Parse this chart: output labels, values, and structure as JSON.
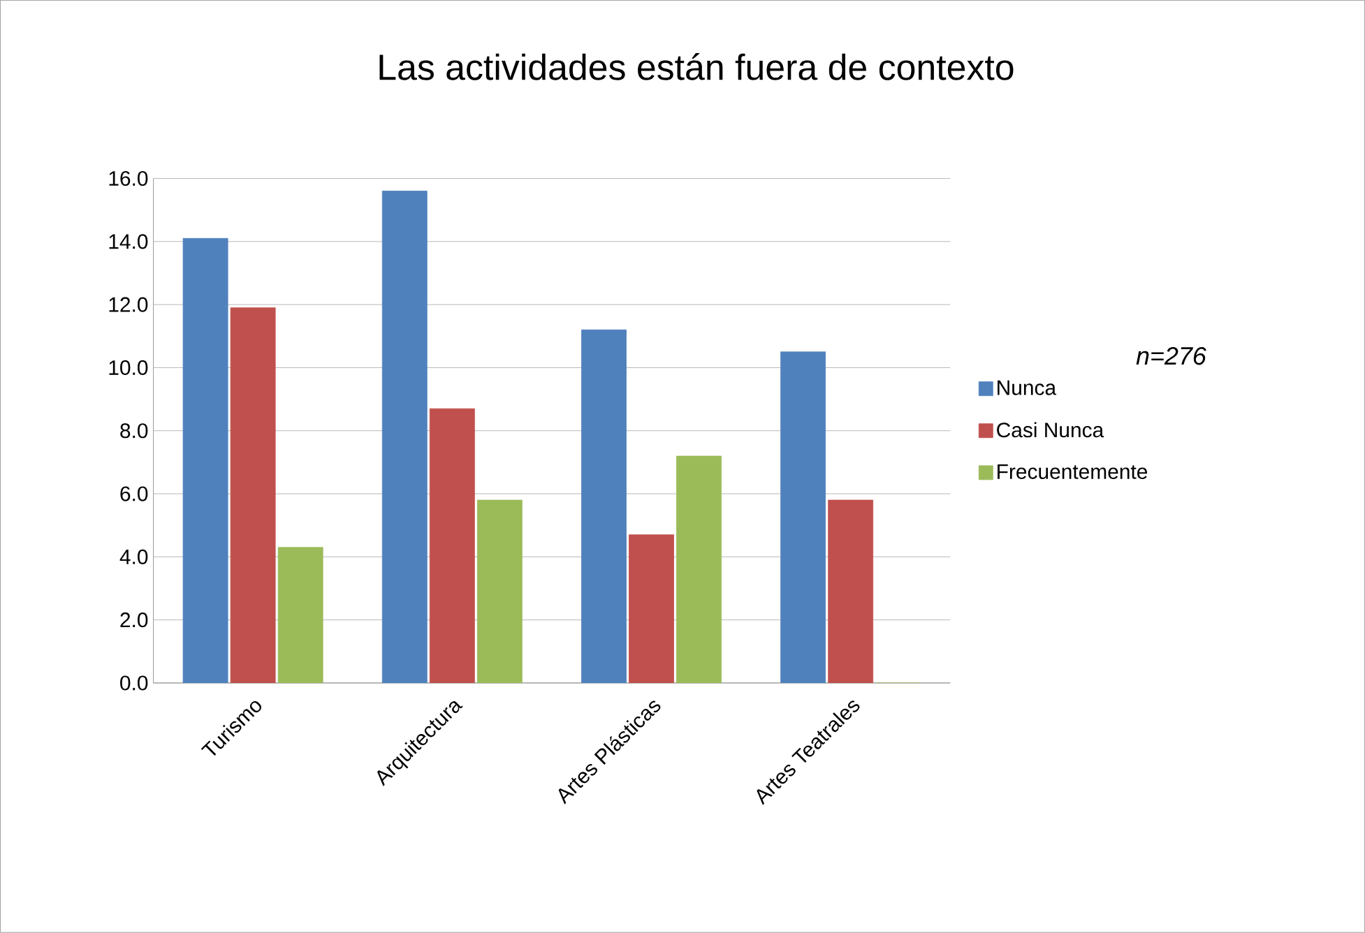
{
  "chart_data": {
    "type": "bar",
    "title": "Las actividades están fuera de contexto",
    "categories": [
      "Turismo",
      "Arquitectura",
      "Artes Plásticas",
      "Artes Teatrales"
    ],
    "series": [
      {
        "name": "Nunca",
        "color": "#4f81bd",
        "values": [
          14.1,
          15.6,
          11.2,
          10.5
        ]
      },
      {
        "name": "Casi Nunca",
        "color": "#c0504d",
        "values": [
          11.9,
          8.7,
          4.7,
          5.8
        ]
      },
      {
        "name": "Frecuentemente",
        "color": "#9bbb59",
        "values": [
          4.3,
          5.8,
          7.2,
          0.0
        ]
      }
    ],
    "ylim": [
      0,
      16
    ],
    "yticks": [
      {
        "value": 0,
        "label": "0.0"
      },
      {
        "value": 2,
        "label": "2.0"
      },
      {
        "value": 4,
        "label": "4.0"
      },
      {
        "value": 6,
        "label": "6.0"
      },
      {
        "value": 8,
        "label": "8.0"
      },
      {
        "value": 10,
        "label": "10.0"
      },
      {
        "value": 12,
        "label": "12.0"
      },
      {
        "value": 14,
        "label": "14.0"
      },
      {
        "value": 16,
        "label": "16.0"
      }
    ],
    "grid": "y",
    "legend": "right",
    "annotations": [
      "n=276"
    ]
  }
}
